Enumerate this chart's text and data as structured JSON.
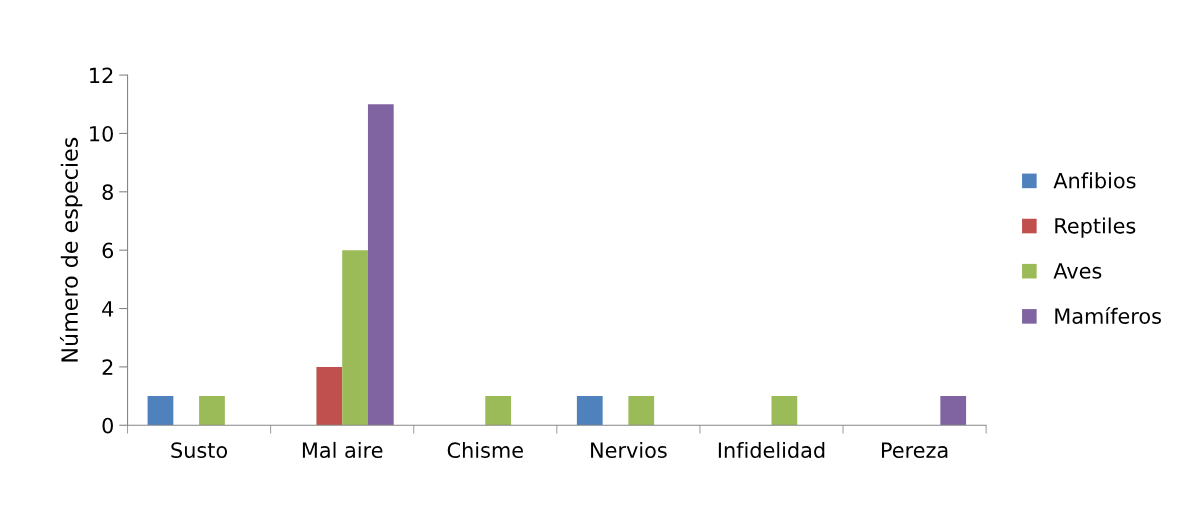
{
  "chart_data": {
    "type": "bar",
    "ylabel": "Número de especies",
    "categories": [
      "Susto",
      "Mal aire",
      "Chisme",
      "Nervios",
      "Infidelidad",
      "Pereza"
    ],
    "series": [
      {
        "name": "Anfibios",
        "color": "#4f81bd",
        "values": [
          1,
          0,
          0,
          1,
          0,
          0
        ]
      },
      {
        "name": "Reptiles",
        "color": "#c0504d",
        "values": [
          0,
          2,
          0,
          0,
          0,
          0
        ]
      },
      {
        "name": "Aves",
        "color": "#9bbb59",
        "values": [
          1,
          6,
          1,
          1,
          1,
          0
        ]
      },
      {
        "name": "Mamíferos",
        "color": "#8064a2",
        "values": [
          0,
          11,
          0,
          0,
          0,
          1
        ]
      }
    ],
    "ylim": [
      0,
      12
    ],
    "yticks": [
      0,
      2,
      4,
      6,
      8,
      10,
      12
    ],
    "grid": false,
    "legend": "right"
  }
}
